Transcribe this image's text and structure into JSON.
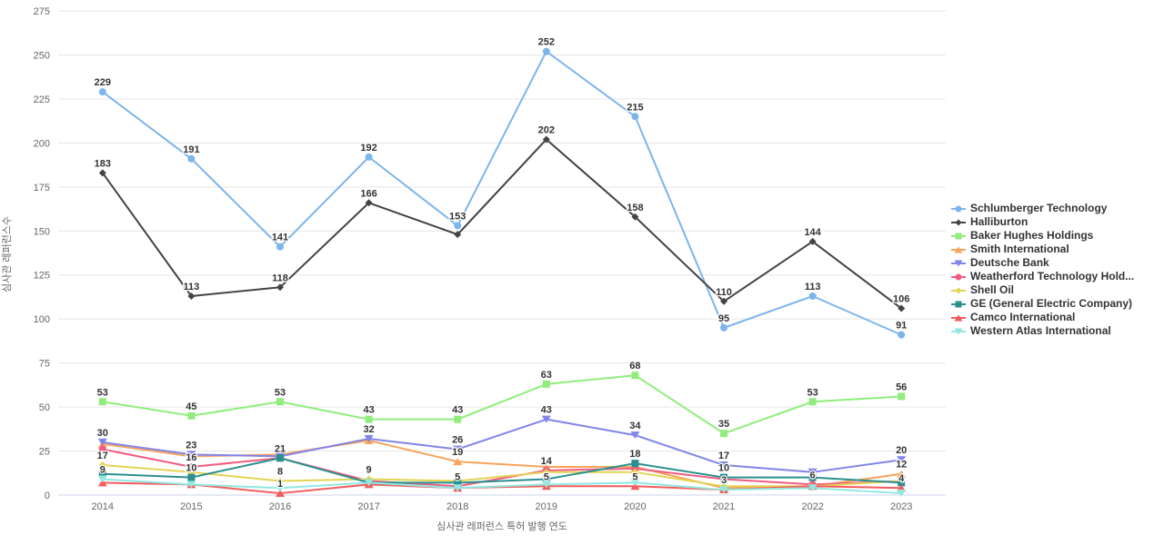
{
  "chart_data": {
    "type": "line",
    "title": "",
    "xlabel": "심사관 레퍼런스 특허 발행 연도",
    "ylabel": "심사관 레퍼런스수",
    "x": [
      2014,
      2015,
      2016,
      2017,
      2018,
      2019,
      2020,
      2021,
      2022,
      2023
    ],
    "ylim": [
      0,
      275
    ],
    "ytick_step": 25,
    "grid": true,
    "legend_position": "right",
    "background_color": "#ffffff",
    "gridline_color": "#e6e6e6",
    "axis_line_color": "#ccd6eb",
    "tick_label_color": "#666666",
    "data_label_color": "#333333",
    "series": [
      {
        "name": "Schlumberger Technology",
        "color": "#7cb5ec",
        "marker": "circle",
        "values": [
          229,
          191,
          141,
          192,
          153,
          252,
          215,
          95,
          113,
          91
        ],
        "labels": [
          229,
          191,
          141,
          192,
          153,
          252,
          215,
          95,
          113,
          91
        ]
      },
      {
        "name": "Halliburton",
        "color": "#434348",
        "marker": "diamond",
        "values": [
          183,
          113,
          118,
          166,
          148,
          202,
          158,
          110,
          144,
          106
        ],
        "labels": [
          183,
          113,
          118,
          166,
          null,
          202,
          158,
          110,
          144,
          106
        ]
      },
      {
        "name": "Baker Hughes Holdings",
        "color": "#90ed7d",
        "marker": "square",
        "values": [
          53,
          45,
          53,
          43,
          43,
          63,
          68,
          35,
          53,
          56
        ],
        "labels": [
          53,
          45,
          53,
          43,
          43,
          63,
          68,
          35,
          53,
          56
        ]
      },
      {
        "name": "Smith International",
        "color": "#f7a35c",
        "marker": "triangle",
        "values": [
          29,
          22,
          23,
          31,
          19,
          16,
          16,
          4,
          5,
          12
        ],
        "labels": [
          null,
          null,
          null,
          null,
          19,
          null,
          null,
          null,
          null,
          12
        ]
      },
      {
        "name": "Deutsche Bank",
        "color": "#8085e9",
        "marker": "triangle-down",
        "values": [
          30,
          23,
          22,
          32,
          26,
          43,
          34,
          17,
          13,
          20
        ],
        "labels": [
          30,
          23,
          null,
          32,
          26,
          43,
          34,
          17,
          null,
          20
        ]
      },
      {
        "name": "Weatherford Technology Hold...",
        "color": "#f15c80",
        "marker": "circle",
        "values": [
          26,
          16,
          21,
          8,
          5,
          14,
          15,
          9,
          6,
          8
        ],
        "labels": [
          null,
          16,
          null,
          null,
          5,
          14,
          null,
          null,
          6,
          null
        ]
      },
      {
        "name": "Shell Oil",
        "color": "#e4d354",
        "marker": "diamond",
        "values": [
          17,
          13,
          8,
          9,
          8,
          13,
          13,
          5,
          5,
          8
        ],
        "labels": [
          17,
          null,
          8,
          9,
          null,
          null,
          null,
          null,
          null,
          null
        ]
      },
      {
        "name": "GE (General Electric Company)",
        "color": "#2b908f",
        "marker": "square",
        "values": [
          12,
          10,
          21,
          7,
          7,
          9,
          18,
          10,
          10,
          7
        ],
        "labels": [
          null,
          10,
          21,
          null,
          null,
          null,
          18,
          10,
          null,
          null
        ]
      },
      {
        "name": "Camco International",
        "color": "#f45b5b",
        "marker": "triangle",
        "values": [
          7,
          6,
          1,
          6,
          4,
          5,
          5,
          3,
          5,
          4
        ],
        "labels": [
          null,
          null,
          1,
          null,
          null,
          5,
          5,
          3,
          null,
          4
        ]
      },
      {
        "name": "Western Atlas International",
        "color": "#91e8e1",
        "marker": "triangle-down",
        "values": [
          9,
          6,
          4,
          7,
          4,
          6,
          7,
          3,
          4,
          1
        ],
        "labels": [
          9,
          null,
          null,
          null,
          null,
          null,
          null,
          null,
          null,
          null
        ]
      }
    ]
  }
}
